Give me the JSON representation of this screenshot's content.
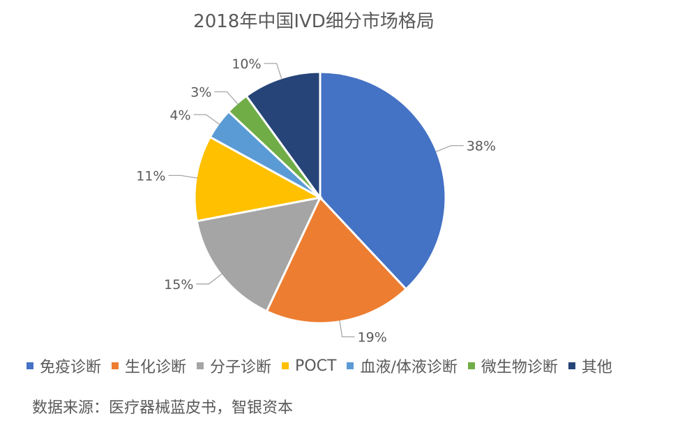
{
  "chart_data": {
    "type": "pie",
    "title": "2018年中国IVD细分市场格局",
    "categories": [
      "免疫诊断",
      "生化诊断",
      "分子诊断",
      "POCT",
      "血液/体液诊断",
      "微生物诊断",
      "其他"
    ],
    "values": [
      38,
      19,
      15,
      11,
      4,
      3,
      10
    ],
    "value_labels": [
      "38%",
      "19%",
      "15%",
      "11%",
      "4%",
      "3%",
      "10%"
    ],
    "colors": [
      "#4472C4",
      "#ED7D31",
      "#A5A5A5",
      "#FFC000",
      "#5B9BD5",
      "#70AD47",
      "#264478"
    ],
    "legend_position": "bottom",
    "start_angle": "12 o'clock",
    "direction": "clockwise"
  },
  "source_note": "数据来源：医疗器械蓝皮书，智银资本"
}
